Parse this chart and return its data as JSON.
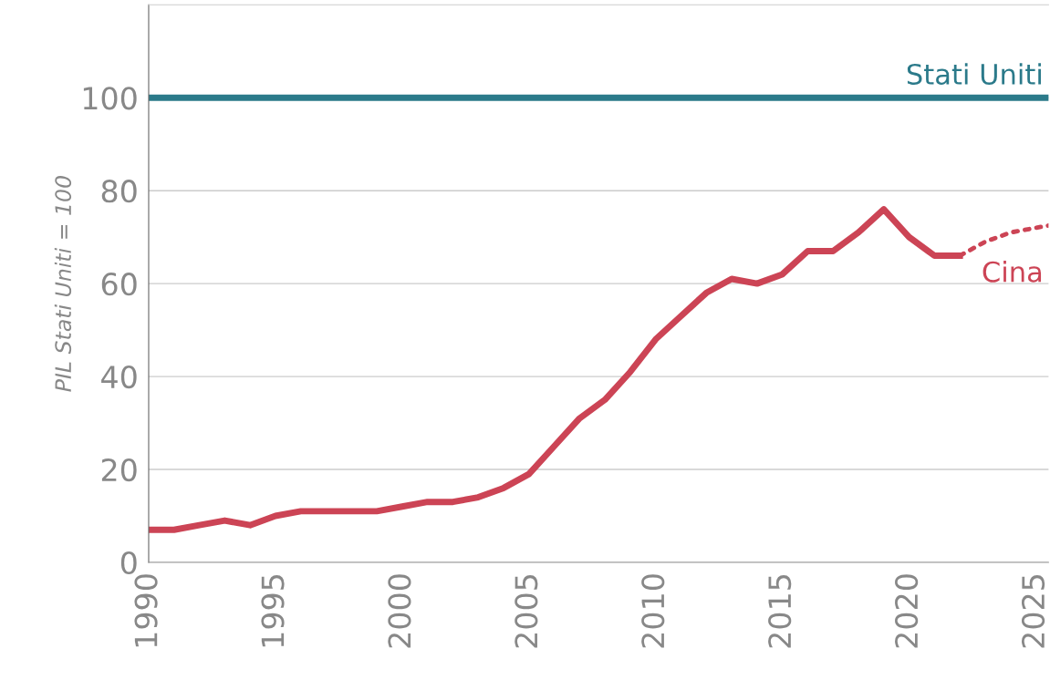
{
  "chart_data": {
    "type": "line",
    "ylabel": "PIL Stati Uniti = 100",
    "xlim": [
      1990,
      2025.5
    ],
    "xticks": [
      1990,
      1995,
      2000,
      2005,
      2010,
      2015,
      2020,
      2025
    ],
    "ylim": [
      0,
      120
    ],
    "yticks": [
      0,
      20,
      40,
      60,
      80,
      100
    ],
    "grid": "y",
    "legend": false,
    "marker": "none",
    "series": [
      {
        "name": "Stati Uniti",
        "color": "#2b7a8a",
        "line_style": "solid",
        "x": [
          1990,
          2025.5
        ],
        "values": [
          100,
          100
        ]
      },
      {
        "name": "Cina",
        "color": "#cc4455",
        "line_style": "solid",
        "x": [
          1990,
          1991,
          1992,
          1993,
          1994,
          1995,
          1996,
          1997,
          1998,
          1999,
          2000,
          2001,
          2002,
          2003,
          2004,
          2005,
          2006,
          2007,
          2008,
          2009,
          2010,
          2011,
          2012,
          2013,
          2014,
          2015,
          2016,
          2017,
          2018,
          2019,
          2020,
          2021,
          2022
        ],
        "values": [
          7,
          7,
          8,
          9,
          8,
          10,
          11,
          11,
          11,
          11,
          12,
          13,
          13,
          14,
          16,
          19,
          25,
          31,
          35,
          41,
          48,
          53,
          58,
          61,
          60,
          62,
          67,
          67,
          71,
          76,
          70,
          66,
          66
        ]
      },
      {
        "color": "#cc4455",
        "line_style": "dotted",
        "x": [
          2022,
          2023,
          2024,
          2025,
          2025.5
        ],
        "values": [
          66,
          69,
          71,
          72,
          72.5
        ]
      }
    ]
  }
}
